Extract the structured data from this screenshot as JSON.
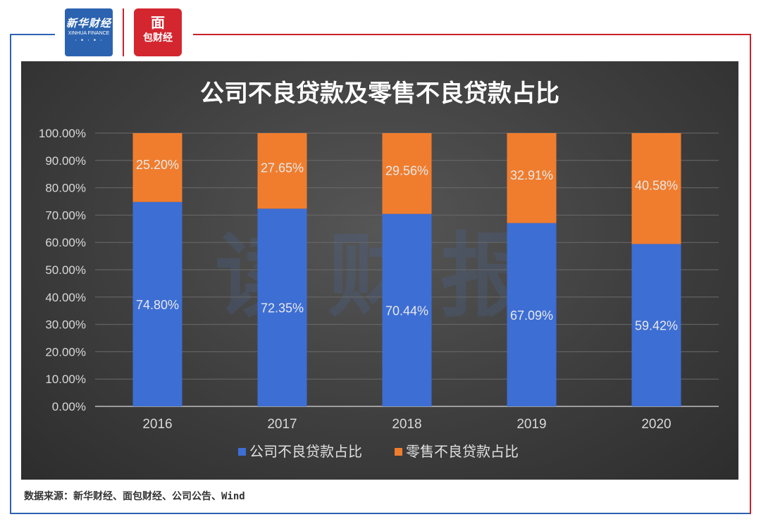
{
  "header": {
    "logo_xinhua_cn": "新华财经",
    "logo_xinhua_en": "XINHUA FINANCE",
    "logo_mianbao_top": "面",
    "logo_mianbao_bottom": "包财经",
    "brand_red": "#c8222b",
    "brand_blue": "#2c63b0"
  },
  "watermark": "读财报",
  "source_text": "数据来源：新华财经、面包财经、公司公告、Wind",
  "chart_data": {
    "type": "bar",
    "stacked": true,
    "title": "公司不良贷款及零售不良贷款占比",
    "categories": [
      "2016",
      "2017",
      "2018",
      "2019",
      "2020"
    ],
    "series": [
      {
        "name": "公司不良贷款占比",
        "values": [
          74.8,
          72.35,
          70.44,
          67.09,
          59.42
        ],
        "labels": [
          "74.80%",
          "72.35%",
          "70.44%",
          "67.09%",
          "59.42%"
        ],
        "color": "#3d6ed4"
      },
      {
        "name": "零售不良贷款占比",
        "values": [
          25.2,
          27.65,
          29.56,
          32.91,
          40.58
        ],
        "labels": [
          "25.20%",
          "27.65%",
          "29.56%",
          "32.91%",
          "40.58%"
        ],
        "color": "#f07d2e"
      }
    ],
    "yticks": [
      "0.00%",
      "10.00%",
      "20.00%",
      "30.00%",
      "40.00%",
      "50.00%",
      "60.00%",
      "70.00%",
      "80.00%",
      "90.00%",
      "100.00%"
    ],
    "ylim": [
      0,
      100
    ],
    "grid": true,
    "legend_position": "bottom"
  }
}
